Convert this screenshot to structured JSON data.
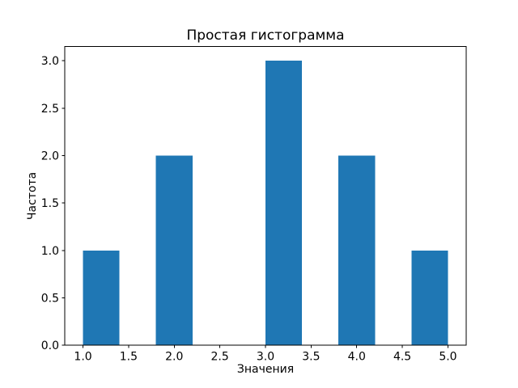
{
  "chart_data": {
    "type": "bar",
    "subtype": "histogram",
    "title": "Простая гистограмма",
    "xlabel": "Значения",
    "ylabel": "Частота",
    "bars": [
      {
        "x0": 1.0,
        "x1": 1.4,
        "count": 1
      },
      {
        "x0": 1.8,
        "x1": 2.2,
        "count": 2
      },
      {
        "x0": 3.0,
        "x1": 3.4,
        "count": 3
      },
      {
        "x0": 3.8,
        "x1": 4.2,
        "count": 2
      },
      {
        "x0": 4.6,
        "x1": 5.0,
        "count": 1
      }
    ],
    "bin_edges": [
      1.0,
      1.4,
      1.8,
      2.2,
      2.6,
      3.0,
      3.4,
      3.8,
      4.2,
      4.6,
      5.0
    ],
    "bin_counts": [
      1,
      0,
      2,
      0,
      0,
      3,
      0,
      2,
      0,
      1
    ],
    "xlim": [
      0.8,
      5.2
    ],
    "ylim": [
      0.0,
      3.15
    ],
    "xticks": [
      {
        "value": 1.0,
        "label": "1.0"
      },
      {
        "value": 1.5,
        "label": "1.5"
      },
      {
        "value": 2.0,
        "label": "2.0"
      },
      {
        "value": 2.5,
        "label": "2.5"
      },
      {
        "value": 3.0,
        "label": "3.0"
      },
      {
        "value": 3.5,
        "label": "3.5"
      },
      {
        "value": 4.0,
        "label": "4.0"
      },
      {
        "value": 4.5,
        "label": "4.5"
      },
      {
        "value": 5.0,
        "label": "5.0"
      }
    ],
    "yticks": [
      {
        "value": 0.0,
        "label": "0.0"
      },
      {
        "value": 0.5,
        "label": "0.5"
      },
      {
        "value": 1.0,
        "label": "1.0"
      },
      {
        "value": 1.5,
        "label": "1.5"
      },
      {
        "value": 2.0,
        "label": "2.0"
      },
      {
        "value": 2.5,
        "label": "2.5"
      },
      {
        "value": 3.0,
        "label": "3.0"
      }
    ],
    "bar_color": "#1f77b4",
    "axis_color": "#000000",
    "background_color": "#ffffff",
    "grid": false,
    "legend": null
  }
}
